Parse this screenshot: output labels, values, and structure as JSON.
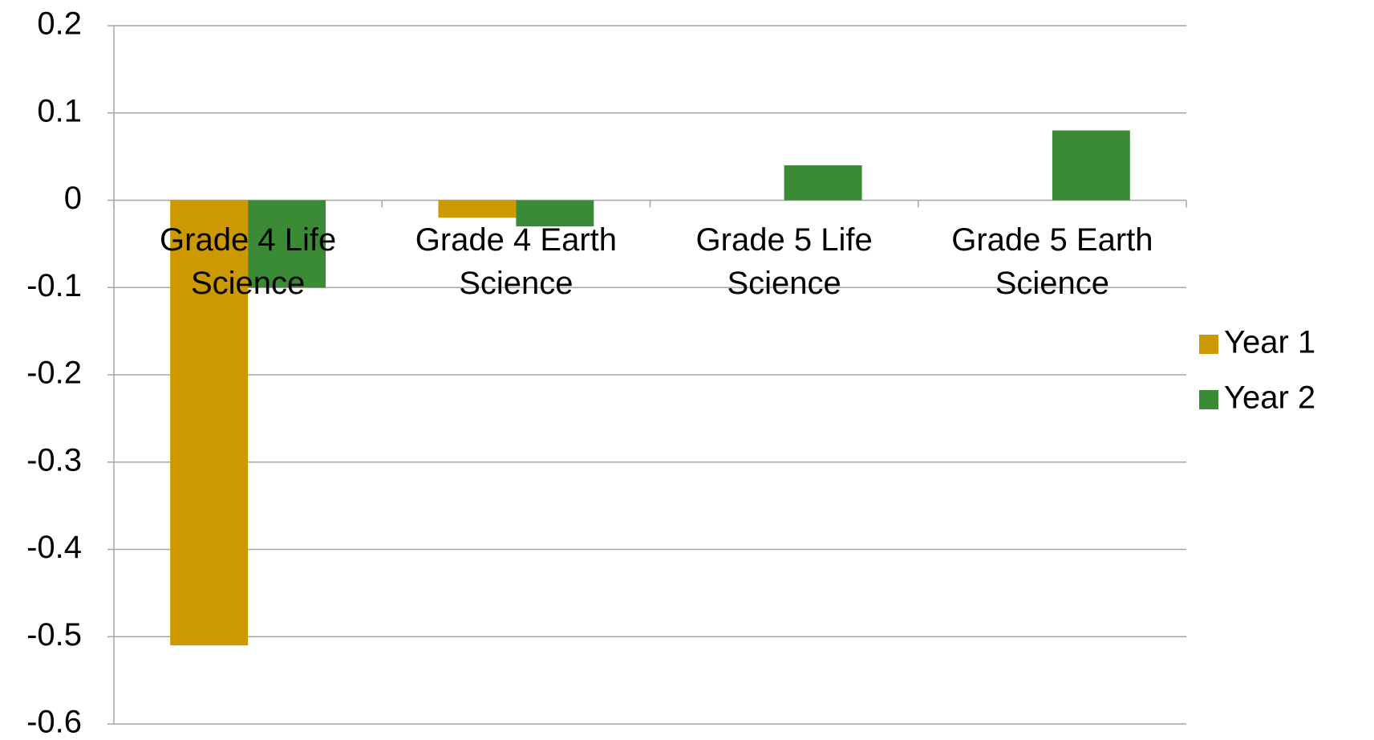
{
  "chart_data": {
    "type": "bar",
    "categories": [
      "Grade 4 Life Science",
      "Grade 4 Earth Science",
      "Grade 5 Life Science",
      "Grade 5 Earth Science"
    ],
    "series": [
      {
        "name": "Year 1",
        "color": "#cc9900",
        "values": [
          -0.51,
          -0.02,
          0,
          0
        ]
      },
      {
        "name": "Year 2",
        "color": "#3b8a35",
        "values": [
          -0.1,
          -0.03,
          0.04,
          0.08
        ]
      }
    ],
    "ylim": [
      -0.6,
      0.2
    ],
    "yticks": [
      -0.6,
      -0.5,
      -0.4,
      -0.3,
      -0.2,
      -0.1,
      0,
      0.1,
      0.2
    ],
    "grid": true,
    "legend": "right"
  }
}
